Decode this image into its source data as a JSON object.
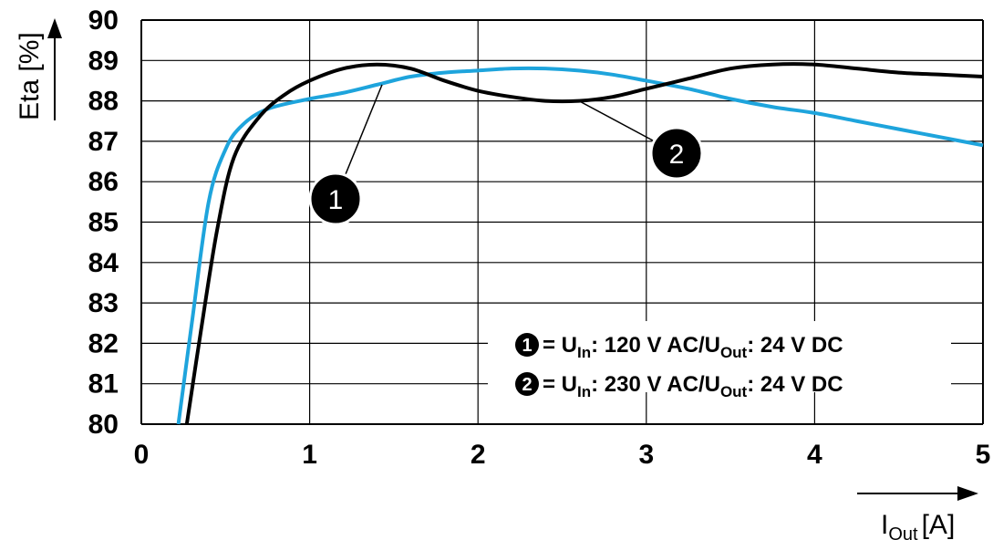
{
  "chart_data": {
    "type": "line",
    "xlabel": "I",
    "xlabel_sub": "Out",
    "xlabel_unit": "[A]",
    "ylabel": "Eta [%]",
    "xlim": [
      0,
      5
    ],
    "ylim": [
      80,
      90
    ],
    "x_ticks": [
      "0",
      "1",
      "2",
      "3",
      "4",
      "5"
    ],
    "y_ticks": [
      "80",
      "81",
      "82",
      "83",
      "84",
      "85",
      "86",
      "87",
      "88",
      "89",
      "90"
    ],
    "grid": true,
    "legend_position": "bottom-right",
    "series": [
      {
        "marker": "1",
        "color": "#000000",
        "x": [
          0.27,
          0.35,
          0.45,
          0.55,
          0.7,
          0.85,
          1.0,
          1.2,
          1.4,
          1.6,
          1.8,
          2.0,
          2.2,
          2.4,
          2.6,
          2.8,
          3.0,
          3.25,
          3.5,
          3.75,
          4.0,
          4.25,
          4.5,
          4.75,
          5.0
        ],
        "y": [
          80.0,
          82.2,
          84.8,
          86.6,
          87.6,
          88.15,
          88.5,
          88.8,
          88.9,
          88.8,
          88.5,
          88.25,
          88.1,
          88.0,
          88.0,
          88.1,
          88.3,
          88.55,
          88.8,
          88.9,
          88.9,
          88.8,
          88.7,
          88.65,
          88.6
        ]
      },
      {
        "marker": "2",
        "color": "#1ea4dc",
        "x": [
          0.22,
          0.3,
          0.4,
          0.5,
          0.6,
          0.75,
          1.0,
          1.2,
          1.4,
          1.6,
          1.8,
          2.0,
          2.2,
          2.4,
          2.6,
          2.8,
          3.0,
          3.25,
          3.5,
          3.75,
          4.0,
          4.25,
          4.5,
          4.75,
          5.0
        ],
        "y": [
          80.0,
          82.5,
          85.5,
          86.8,
          87.4,
          87.8,
          88.05,
          88.2,
          88.4,
          88.6,
          88.7,
          88.75,
          88.8,
          88.8,
          88.75,
          88.65,
          88.5,
          88.3,
          88.05,
          87.85,
          87.7,
          87.5,
          87.3,
          87.1,
          86.9
        ]
      }
    ],
    "callouts": [
      {
        "label": "1",
        "at_x": 1.43,
        "at_y": 88.4
      },
      {
        "label": "2",
        "at_x": 2.6,
        "at_y": 88.0
      }
    ],
    "legend": [
      {
        "marker": "1",
        "prefix": "= U",
        "in_sub": "In",
        "mid": ": 120 V AC/U",
        "out_sub": "Out",
        "suffix": ": 24 V DC"
      },
      {
        "marker": "2",
        "prefix": "= U",
        "in_sub": "In",
        "mid": ": 230 V AC/U",
        "out_sub": "Out",
        "suffix": ": 24 V DC"
      }
    ]
  }
}
